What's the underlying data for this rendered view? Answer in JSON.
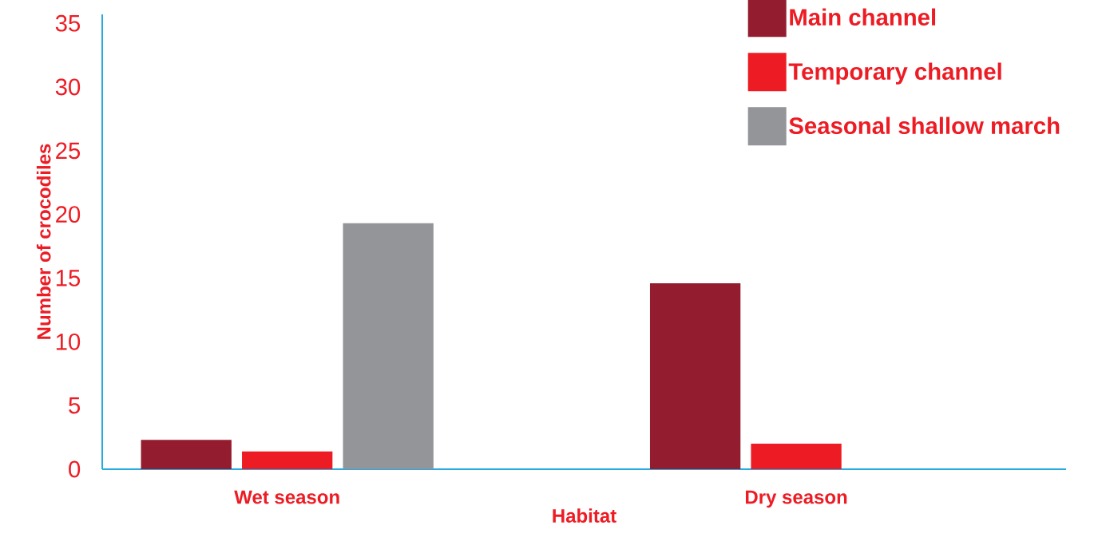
{
  "chart_data": {
    "type": "bar",
    "xlabel": "Habitat",
    "ylabel": "Number of crocodiles",
    "categories": [
      "Wet season",
      "Dry season"
    ],
    "series": [
      {
        "name": "Main channel",
        "color": "#941c2f",
        "values": [
          2.3,
          14.6
        ]
      },
      {
        "name": "Temporary channel",
        "color": "#ed1c24",
        "values": [
          1.4,
          2.0
        ]
      },
      {
        "name": "Seasonal shallow march",
        "color": "#939598",
        "values": [
          19.3,
          null
        ]
      }
    ],
    "ylim": [
      0,
      35.7
    ],
    "yticks": [
      0,
      5,
      10,
      15,
      20,
      25,
      30,
      35
    ],
    "legend": "top right",
    "grid": false
  }
}
